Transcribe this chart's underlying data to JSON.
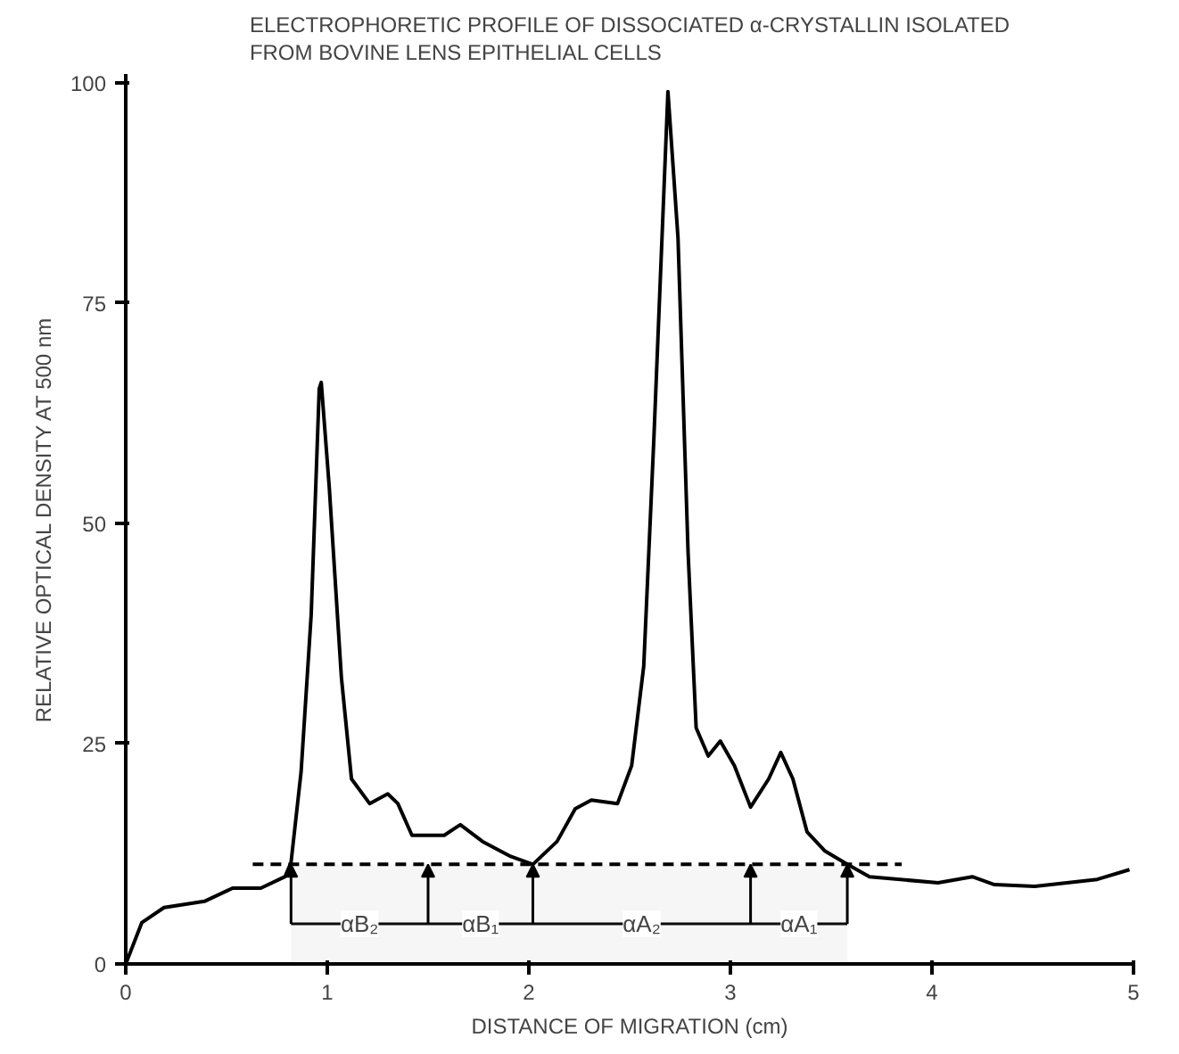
{
  "chart_data": {
    "type": "line",
    "title": "ELECTROPHORETIC PROFILE OF DISSOCIATED α-CRYSTALLIN ISOLATED\nFROM BOVINE LENS EPITHELIAL CELLS",
    "xlabel": "DISTANCE OF MIGRATION (cm)",
    "ylabel": "RELATIVE OPTICAL DENSITY AT 500 nm",
    "series": [
      {
        "color": "#000000",
        "x": [
          0,
          0.08,
          0.19,
          0.39,
          0.53,
          0.67,
          0.79,
          0.82,
          0.87,
          0.92,
          0.96,
          0.97,
          1.01,
          1.07,
          1.12,
          1.21,
          1.3,
          1.35,
          1.42,
          1.58,
          1.66,
          1.77,
          1.91,
          2.02,
          2.14,
          2.23,
          2.31,
          2.44,
          2.51,
          2.57,
          2.62,
          2.69,
          2.74,
          2.79,
          2.83,
          2.89,
          2.95,
          3.02,
          3.1,
          3.19,
          3.25,
          3.31,
          3.38,
          3.47,
          3.58,
          3.69,
          4.03,
          4.2,
          4.31,
          4.51,
          4.82,
          4.98
        ],
        "values": [
          0,
          4.7,
          6.4,
          7.1,
          8.6,
          8.6,
          9.9,
          11.5,
          21.8,
          39.6,
          65.3,
          66,
          54,
          32.5,
          21,
          18.2,
          19.3,
          18.2,
          14.6,
          14.6,
          15.8,
          13.9,
          12.2,
          11.3,
          13.9,
          17.6,
          18.6,
          18.2,
          22.5,
          33.8,
          59.5,
          99,
          82.4,
          46.7,
          26.8,
          23.6,
          25.3,
          22.5,
          17.8,
          21,
          24,
          21,
          15,
          12.8,
          11.3,
          9.9,
          9.2,
          9.9,
          9.0,
          8.8,
          9.6,
          10.7
        ]
      },
      {
        "color": "#000000",
        "line_style": "dashed",
        "x": [
          0.63,
          3.85
        ],
        "values": [
          11.3,
          11.3
        ]
      }
    ],
    "bands": [
      {
        "axis": "x",
        "from": 0.82,
        "to": 1.5,
        "label": "αB₂"
      },
      {
        "axis": "x",
        "from": 1.5,
        "to": 2.02,
        "label": "αB₁"
      },
      {
        "axis": "x",
        "from": 2.02,
        "to": 3.1,
        "label": "αA₂"
      },
      {
        "axis": "x",
        "from": 3.1,
        "to": 3.58,
        "label": "αA₁"
      }
    ],
    "xlim": [
      0,
      5
    ],
    "ylim": [
      0,
      101
    ],
    "xticks": [
      0,
      1,
      2,
      3,
      4,
      5
    ],
    "yticks": [
      0,
      25,
      50,
      75,
      100
    ],
    "grid": false
  }
}
